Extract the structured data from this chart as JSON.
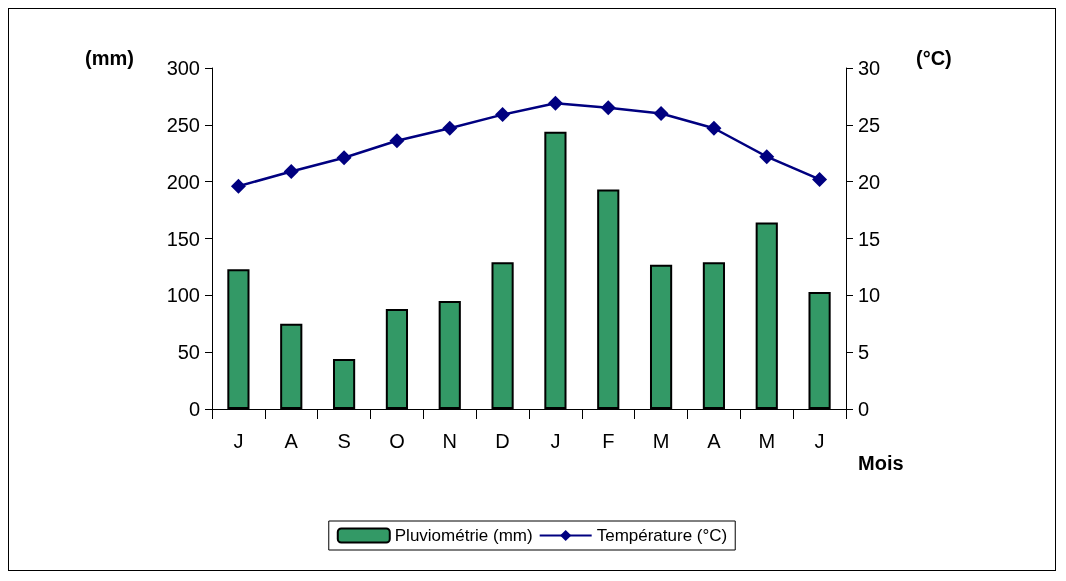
{
  "chart_data": {
    "type": "bar",
    "categories": [
      "J",
      "A",
      "S",
      "O",
      "N",
      "D",
      "J",
      "F",
      "M",
      "A",
      "M",
      "J"
    ],
    "xlabel": "Mois",
    "ylabel": "(mm)",
    "y2label": "(°C)",
    "series": [
      {
        "name": "Pluviométrie (mm)",
        "color": "#339966",
        "values": [
          123,
          75,
          44,
          88,
          95,
          129,
          244,
          193,
          127,
          129,
          164,
          103
        ]
      },
      {
        "name": "Température (°C)",
        "type": "line",
        "axis": "y2",
        "color": "#000080",
        "marker": "diamond",
        "values": [
          19.6,
          20.9,
          22.1,
          23.6,
          24.7,
          25.9,
          26.9,
          26.5,
          26.0,
          24.7,
          22.2,
          20.2
        ]
      }
    ],
    "ylim": [
      0,
      300
    ],
    "yticks": [
      0,
      50,
      100,
      150,
      200,
      250,
      300
    ],
    "y2lim": [
      0,
      30
    ],
    "y2ticks": [
      0,
      5,
      10,
      15,
      20,
      25,
      30
    ],
    "grid": false,
    "legend": "bottom"
  }
}
